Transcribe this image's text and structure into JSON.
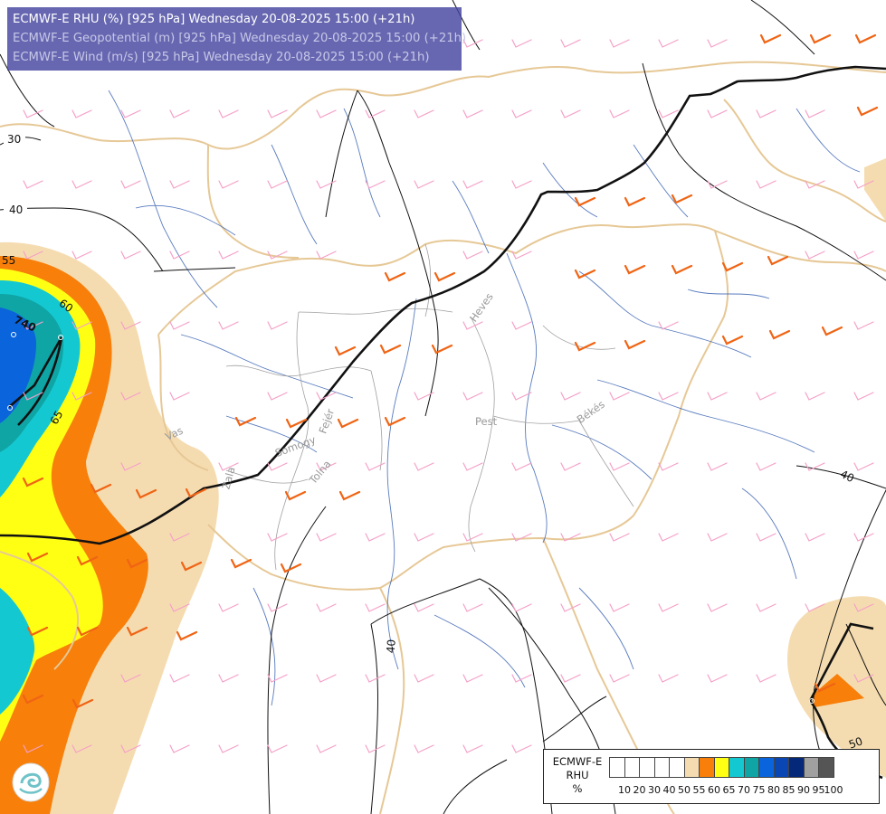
{
  "header": {
    "line1": "ECMWF-E RHU (%) [925 hPa] Wednesday 20-08-2025 15:00 (+21h)",
    "line2": "ECMWF-E Geopotential (m) [925 hPa] Wednesday 20-08-2025 15:00 (+21h)",
    "line3": "ECMWF-E Wind (m/s) [925 hPa] Wednesday 20-08-2025 15:00 (+21h)"
  },
  "legend": {
    "model": "ECMWF-E",
    "variable": "RHU",
    "unit": "%",
    "colors": [
      "#ffffff",
      "#ffffff",
      "#ffffff",
      "#ffffff",
      "#ffffff",
      "#f5dcb0",
      "#f77f0a",
      "#ffff14",
      "#14c8d2",
      "#0fa5a5",
      "#0a64dc",
      "#0a46b4",
      "#052878",
      "#a0a0a0",
      "#555555"
    ],
    "ticks": [
      "10",
      "20",
      "30",
      "40",
      "50",
      "55",
      "60",
      "65",
      "70",
      "75",
      "80",
      "85",
      "90",
      "95",
      "100"
    ]
  },
  "contour_labels": {
    "geo_30": "30",
    "geo_40_left": "40",
    "geo_40_right": "40",
    "geo_40_bottom": "40",
    "geo_50": "50",
    "rhu_55": "55",
    "rhu_60": "60",
    "rhu_65": "65",
    "geo_740": "740"
  },
  "place_labels": {
    "vas": "Vas",
    "zala": "Zala",
    "somogy": "Somogy",
    "fejer": "Fejér",
    "tolna": "Tolna",
    "heves": "Heves",
    "pest": "Pest",
    "bekes": "Békés"
  },
  "colors": {
    "wind_weak": "#f5a0c8",
    "wind_strong": "#f06414",
    "border": "#e6c896",
    "river": "#3c64b4"
  }
}
